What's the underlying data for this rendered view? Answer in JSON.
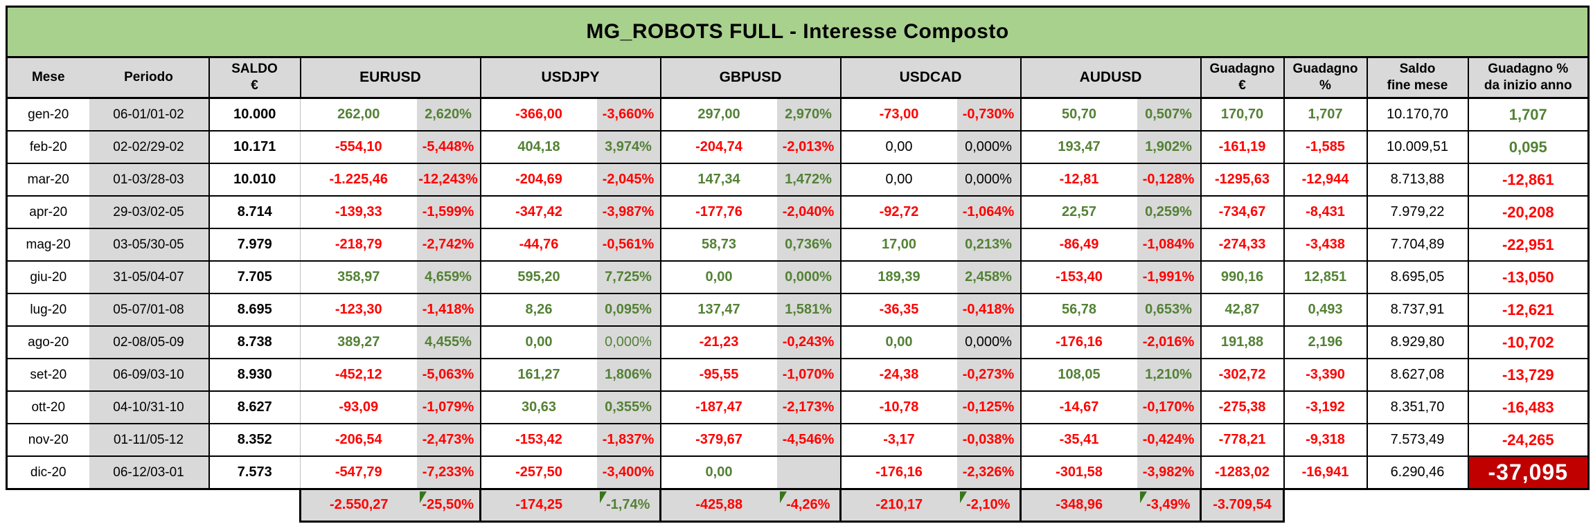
{
  "title": "MG_ROBOTS FULL - Interesse Composto",
  "colors": {
    "title_bg": "#A9D18E",
    "header_bg": "#D9D9D9",
    "shaded_column_bg": "#D9D9D9",
    "positive_text": "#538135",
    "negative_text": "#FF0000",
    "neutral_text": "#000000",
    "alert_bg": "#C00000",
    "alert_text": "#FFFFFF",
    "flag_triangle": "#38761D"
  },
  "header": {
    "mese": "Mese",
    "periodo": "Periodo",
    "saldo_line1": "SALDO",
    "saldo_line2": "€",
    "pairs": [
      "EURUSD",
      "USDJPY",
      "GBPUSD",
      "USDCAD",
      "AUDUSD"
    ],
    "guadagno_eur_line1": "Guadagno",
    "guadagno_eur_line2": "€",
    "guadagno_pct_line1": "Guadagno",
    "guadagno_pct_line2": "%",
    "saldo_fine_line1": "Saldo",
    "saldo_fine_line2": "fine mese",
    "ytd_line1": "Guadagno %",
    "ytd_line2": "da inizio anno"
  },
  "rows": [
    {
      "mese": "gen-20",
      "periodo": "06-01/01-02",
      "saldo": "10.000",
      "pairs": [
        [
          "262,00",
          "g",
          "2,620%",
          "g"
        ],
        [
          "-366,00",
          "r",
          "-3,660%",
          "r"
        ],
        [
          "297,00",
          "g",
          "2,970%",
          "g"
        ],
        [
          "-73,00",
          "r",
          "-0,730%",
          "r"
        ],
        [
          "50,70",
          "g",
          "0,507%",
          "g"
        ]
      ],
      "guadagno_eur": [
        "170,70",
        "g"
      ],
      "guadagno_pct": [
        "1,707",
        "g"
      ],
      "saldo_fine": "10.170,70",
      "ytd": [
        "1,707",
        "g"
      ]
    },
    {
      "mese": "feb-20",
      "periodo": "02-02/29-02",
      "saldo": "10.171",
      "pairs": [
        [
          "-554,10",
          "r",
          "-5,448%",
          "r"
        ],
        [
          "404,18",
          "g",
          "3,974%",
          "g"
        ],
        [
          "-204,74",
          "r",
          "-2,013%",
          "r"
        ],
        [
          "0,00",
          "kn",
          "0,000%",
          "kn"
        ],
        [
          "193,47",
          "g",
          "1,902%",
          "g"
        ]
      ],
      "guadagno_eur": [
        "-161,19",
        "r"
      ],
      "guadagno_pct": [
        "-1,585",
        "r"
      ],
      "saldo_fine": "10.009,51",
      "ytd": [
        "0,095",
        "g"
      ]
    },
    {
      "mese": "mar-20",
      "periodo": "01-03/28-03",
      "saldo": "10.010",
      "pairs": [
        [
          "-1.225,46",
          "r",
          "-12,243%",
          "r"
        ],
        [
          "-204,69",
          "r",
          "-2,045%",
          "r"
        ],
        [
          "147,34",
          "g",
          "1,472%",
          "g"
        ],
        [
          "0,00",
          "kn",
          "0,000%",
          "kn"
        ],
        [
          "-12,81",
          "r",
          "-0,128%",
          "r"
        ]
      ],
      "guadagno_eur": [
        "-1295,63",
        "r"
      ],
      "guadagno_pct": [
        "-12,944",
        "r"
      ],
      "saldo_fine": "8.713,88",
      "ytd": [
        "-12,861",
        "r"
      ]
    },
    {
      "mese": "apr-20",
      "periodo": "29-03/02-05",
      "saldo": "8.714",
      "pairs": [
        [
          "-139,33",
          "r",
          "-1,599%",
          "r"
        ],
        [
          "-347,42",
          "r",
          "-3,987%",
          "r"
        ],
        [
          "-177,76",
          "r",
          "-2,040%",
          "r"
        ],
        [
          "-92,72",
          "r",
          "-1,064%",
          "r"
        ],
        [
          "22,57",
          "g",
          "0,259%",
          "g"
        ]
      ],
      "guadagno_eur": [
        "-734,67",
        "r"
      ],
      "guadagno_pct": [
        "-8,431",
        "r"
      ],
      "saldo_fine": "7.979,22",
      "ytd": [
        "-20,208",
        "r"
      ]
    },
    {
      "mese": "mag-20",
      "periodo": "03-05/30-05",
      "saldo": "7.979",
      "pairs": [
        [
          "-218,79",
          "r",
          "-2,742%",
          "r"
        ],
        [
          "-44,76",
          "r",
          "-0,561%",
          "r"
        ],
        [
          "58,73",
          "g",
          "0,736%",
          "g"
        ],
        [
          "17,00",
          "g",
          "0,213%",
          "g"
        ],
        [
          "-86,49",
          "r",
          "-1,084%",
          "r"
        ]
      ],
      "guadagno_eur": [
        "-274,33",
        "r"
      ],
      "guadagno_pct": [
        "-3,438",
        "r"
      ],
      "saldo_fine": "7.704,89",
      "ytd": [
        "-22,951",
        "r"
      ]
    },
    {
      "mese": "giu-20",
      "periodo": "31-05/04-07",
      "saldo": "7.705",
      "pairs": [
        [
          "358,97",
          "g",
          "4,659%",
          "g"
        ],
        [
          "595,20",
          "g",
          "7,725%",
          "g"
        ],
        [
          "0,00",
          "g",
          "0,000%",
          "g"
        ],
        [
          "189,39",
          "g",
          "2,458%",
          "g"
        ],
        [
          "-153,40",
          "r",
          "-1,991%",
          "r"
        ]
      ],
      "guadagno_eur": [
        "990,16",
        "g"
      ],
      "guadagno_pct": [
        "12,851",
        "g"
      ],
      "saldo_fine": "8.695,05",
      "ytd": [
        "-13,050",
        "r"
      ]
    },
    {
      "mese": "lug-20",
      "periodo": "05-07/01-08",
      "saldo": "8.695",
      "pairs": [
        [
          "-123,30",
          "r",
          "-1,418%",
          "r"
        ],
        [
          "8,26",
          "g",
          "0,095%",
          "g"
        ],
        [
          "137,47",
          "g",
          "1,581%",
          "g"
        ],
        [
          "-36,35",
          "r",
          "-0,418%",
          "r"
        ],
        [
          "56,78",
          "g",
          "0,653%",
          "g"
        ]
      ],
      "guadagno_eur": [
        "42,87",
        "g"
      ],
      "guadagno_pct": [
        "0,493",
        "g"
      ],
      "saldo_fine": "8.737,91",
      "ytd": [
        "-12,621",
        "r"
      ]
    },
    {
      "mese": "ago-20",
      "periodo": "02-08/05-09",
      "saldo": "8.738",
      "pairs": [
        [
          "389,27",
          "g",
          "4,455%",
          "g"
        ],
        [
          "0,00",
          "g",
          "0,000%",
          "gn"
        ],
        [
          "-21,23",
          "r",
          "-0,243%",
          "r"
        ],
        [
          "0,00",
          "g",
          "0,000%",
          "kn"
        ],
        [
          "-176,16",
          "r",
          "-2,016%",
          "r"
        ]
      ],
      "guadagno_eur": [
        "191,88",
        "g"
      ],
      "guadagno_pct": [
        "2,196",
        "g"
      ],
      "saldo_fine": "8.929,80",
      "ytd": [
        "-10,702",
        "r"
      ]
    },
    {
      "mese": "set-20",
      "periodo": "06-09/03-10",
      "saldo": "8.930",
      "pairs": [
        [
          "-452,12",
          "r",
          "-5,063%",
          "r"
        ],
        [
          "161,27",
          "g",
          "1,806%",
          "g"
        ],
        [
          "-95,55",
          "r",
          "-1,070%",
          "r"
        ],
        [
          "-24,38",
          "r",
          "-0,273%",
          "r"
        ],
        [
          "108,05",
          "g",
          "1,210%",
          "g"
        ]
      ],
      "guadagno_eur": [
        "-302,72",
        "r"
      ],
      "guadagno_pct": [
        "-3,390",
        "r"
      ],
      "saldo_fine": "8.627,08",
      "ytd": [
        "-13,729",
        "r"
      ]
    },
    {
      "mese": "ott-20",
      "periodo": "04-10/31-10",
      "saldo": "8.627",
      "pairs": [
        [
          "-93,09",
          "r",
          "-1,079%",
          "r"
        ],
        [
          "30,63",
          "g",
          "0,355%",
          "g"
        ],
        [
          "-187,47",
          "r",
          "-2,173%",
          "r"
        ],
        [
          "-10,78",
          "r",
          "-0,125%",
          "r"
        ],
        [
          "-14,67",
          "r",
          "-0,170%",
          "r"
        ]
      ],
      "guadagno_eur": [
        "-275,38",
        "r"
      ],
      "guadagno_pct": [
        "-3,192",
        "r"
      ],
      "saldo_fine": "8.351,70",
      "ytd": [
        "-16,483",
        "r"
      ]
    },
    {
      "mese": "nov-20",
      "periodo": "01-11/05-12",
      "saldo": "8.352",
      "pairs": [
        [
          "-206,54",
          "r",
          "-2,473%",
          "r"
        ],
        [
          "-153,42",
          "r",
          "-1,837%",
          "r"
        ],
        [
          "-379,67",
          "r",
          "-4,546%",
          "r"
        ],
        [
          "-3,17",
          "r",
          "-0,038%",
          "r"
        ],
        [
          "-35,41",
          "r",
          "-0,424%",
          "r"
        ]
      ],
      "guadagno_eur": [
        "-778,21",
        "r"
      ],
      "guadagno_pct": [
        "-9,318",
        "r"
      ],
      "saldo_fine": "7.573,49",
      "ytd": [
        "-24,265",
        "r"
      ]
    },
    {
      "mese": "dic-20",
      "periodo": "06-12/03-01",
      "saldo": "7.573",
      "pairs": [
        [
          "-547,79",
          "r",
          "-7,233%",
          "r"
        ],
        [
          "-257,50",
          "r",
          "-3,400%",
          "r"
        ],
        [
          "0,00",
          "g",
          "",
          ""
        ],
        [
          "-176,16",
          "r",
          "-2,326%",
          "r"
        ],
        [
          "-301,58",
          "r",
          "-3,982%",
          "r"
        ]
      ],
      "guadagno_eur": [
        "-1283,02",
        "r"
      ],
      "guadagno_pct": [
        "-16,941",
        "r"
      ],
      "saldo_fine": "6.290,46",
      "ytd": [
        "-37,095",
        "alarm"
      ]
    }
  ],
  "totals": {
    "flag_on_pct": true,
    "pairs": [
      [
        "-2.550,27",
        "r",
        "-25,50%",
        "r"
      ],
      [
        "-174,25",
        "r",
        "-1,74%",
        "g"
      ],
      [
        "-425,88",
        "r",
        "-4,26%",
        "r"
      ],
      [
        "-210,17",
        "r",
        "-2,10%",
        "r"
      ],
      [
        "-348,96",
        "r",
        "-3,49%",
        "r"
      ]
    ],
    "guadagno_eur": [
      "-3.709,54",
      "r"
    ]
  }
}
